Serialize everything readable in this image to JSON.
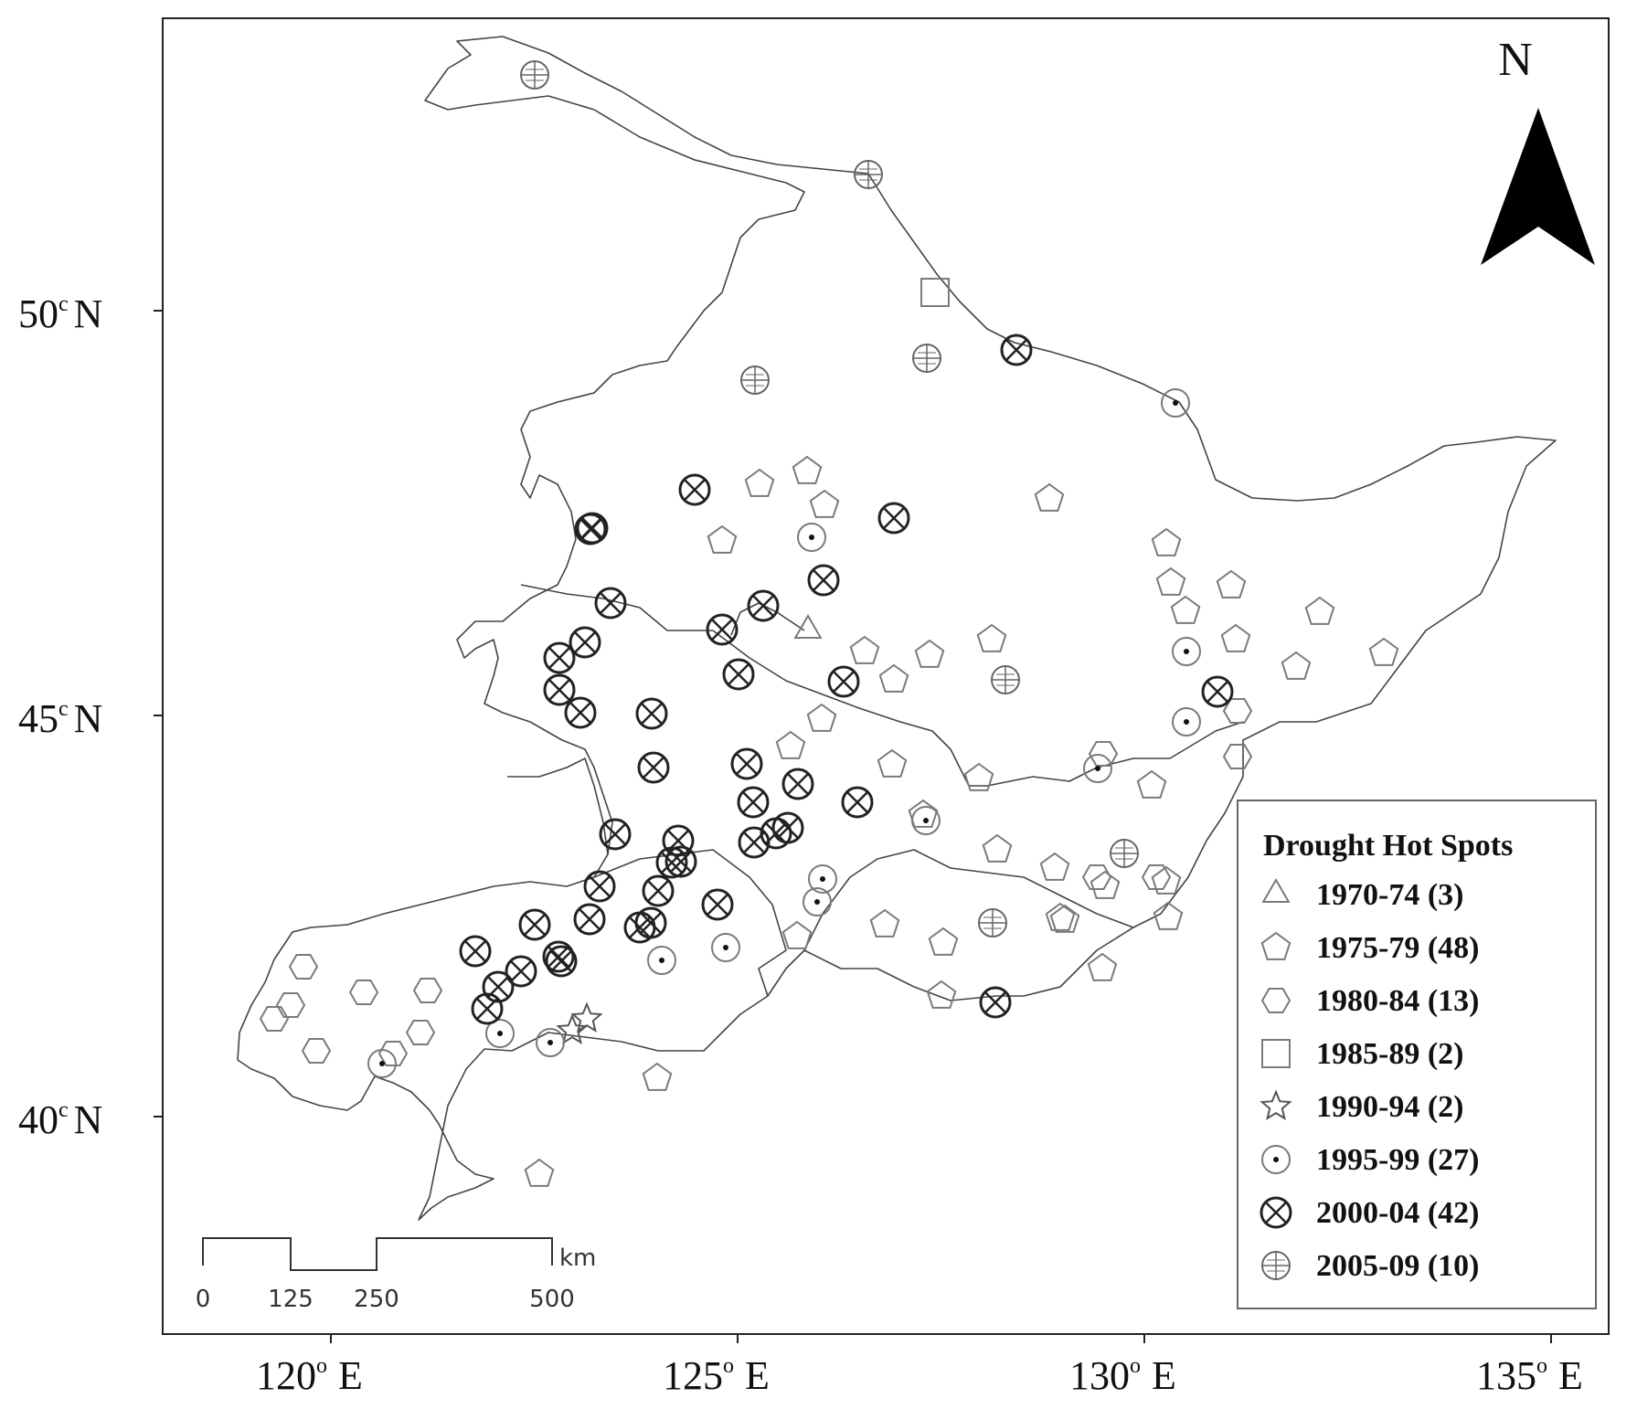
{
  "map": {
    "north_label": "N",
    "lat_ticks": [
      {
        "value": 50,
        "deg": "50",
        "sup": "c",
        "hemi": "N"
      },
      {
        "value": 45,
        "deg": "45",
        "sup": "c",
        "hemi": "N"
      },
      {
        "value": 40,
        "deg": "40",
        "sup": "c",
        "hemi": "N"
      }
    ],
    "lon_ticks": [
      {
        "value": 120,
        "deg": "120",
        "sup": "o",
        "hemi": "E"
      },
      {
        "value": 125,
        "deg": "125",
        "sup": "o",
        "hemi": "E"
      },
      {
        "value": 130,
        "deg": "130",
        "sup": "o",
        "hemi": "E"
      },
      {
        "value": 135,
        "deg": "135",
        "sup": "o",
        "hemi": "E"
      }
    ],
    "scale_bar": {
      "unit": "km",
      "ticks": [
        "0",
        "125",
        "250",
        "500"
      ]
    }
  },
  "legend": {
    "title": "Drought Hot Spots",
    "items": [
      {
        "period": "1970-74",
        "count": 3,
        "label": "1970-74 (3)",
        "symbol": "triangle"
      },
      {
        "period": "1975-79",
        "count": 48,
        "label": "1975-79 (48)",
        "symbol": "pentagon"
      },
      {
        "period": "1980-84",
        "count": 13,
        "label": "1980-84 (13)",
        "symbol": "hexagon"
      },
      {
        "period": "1985-89",
        "count": 2,
        "label": "1985-89 (2)",
        "symbol": "square"
      },
      {
        "period": "1990-94",
        "count": 2,
        "label": "1990-94 (2)",
        "symbol": "star"
      },
      {
        "period": "1995-99",
        "count": 27,
        "label": "1995-99 (27)",
        "symbol": "circle-dot"
      },
      {
        "period": "2000-04",
        "count": 42,
        "label": "2000-04 (42)",
        "symbol": "circle-x"
      },
      {
        "period": "2005-09",
        "count": 10,
        "label": "2005-09 (10)",
        "symbol": "circle-plus"
      }
    ]
  },
  "colors": {
    "ink": "#111111",
    "symbol_light": "#7a7a7a",
    "symbol_dark": "#222222",
    "boundary": "#444444"
  }
}
